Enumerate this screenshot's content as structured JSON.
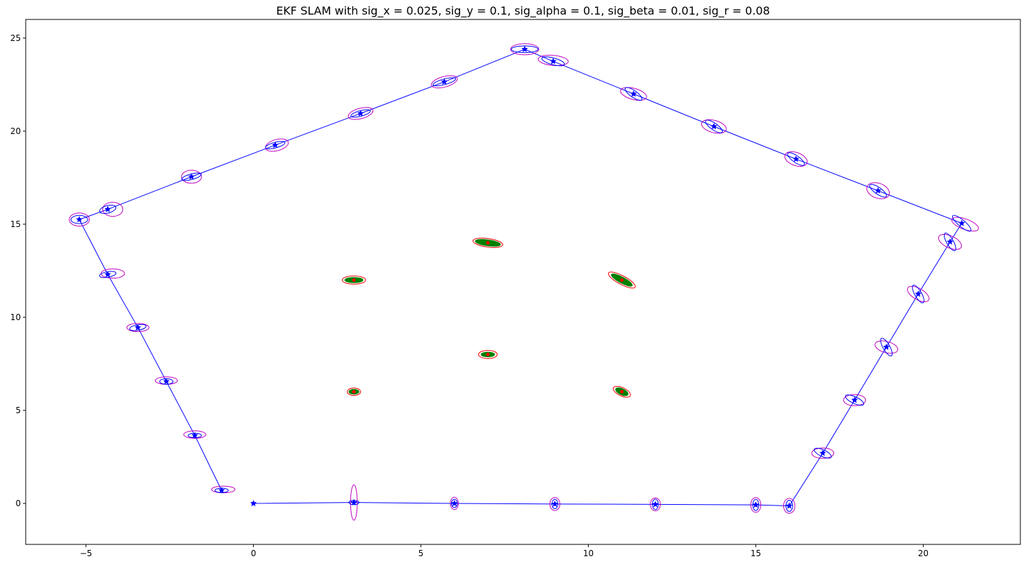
{
  "chart_data": {
    "type": "line",
    "title": "EKF SLAM with sig_x = 0.025, sig_y = 0.1, sig_alpha = 0.1, sig_beta = 0.01, sig_r = 0.08",
    "xlabel": "",
    "ylabel": "",
    "xlim": [
      -6.8,
      22.9
    ],
    "ylim": [
      -2.2,
      26.0
    ],
    "xticks": [
      -5,
      0,
      5,
      10,
      15,
      20
    ],
    "yticks": [
      0,
      5,
      10,
      15,
      20,
      25
    ],
    "grid": false,
    "colors": {
      "trajectory": "#0000ff",
      "pose_inner_ellipse": "#0000ff",
      "pose_outer_ellipse": "#bf00bf",
      "landmark_fill": "#008000",
      "landmark_outer_ellipse": "#ff0000",
      "landmark_marker": "#ff0000"
    },
    "series": [
      {
        "type": "line-marker",
        "marker": "star",
        "points": [
          [
            0.0,
            0.0
          ],
          [
            3.0,
            0.05
          ],
          [
            6.0,
            0.0
          ],
          [
            9.0,
            -0.03
          ],
          [
            12.0,
            -0.05
          ],
          [
            15.0,
            -0.08
          ],
          [
            16.0,
            -0.13
          ],
          [
            17.0,
            2.7
          ],
          [
            17.95,
            5.55
          ],
          [
            18.9,
            8.4
          ],
          [
            19.85,
            11.25
          ],
          [
            20.8,
            14.05
          ],
          [
            21.15,
            15.05
          ],
          [
            18.65,
            16.8
          ],
          [
            16.2,
            18.5
          ],
          [
            13.75,
            20.25
          ],
          [
            11.35,
            22.0
          ],
          [
            8.95,
            23.75
          ],
          [
            8.1,
            24.4
          ],
          [
            5.7,
            22.65
          ],
          [
            3.2,
            20.95
          ],
          [
            0.65,
            19.25
          ],
          [
            -1.85,
            17.55
          ],
          [
            -4.35,
            15.8
          ],
          [
            -5.2,
            15.25
          ],
          [
            -4.35,
            12.3
          ],
          [
            -3.45,
            9.45
          ],
          [
            -2.6,
            6.55
          ],
          [
            -1.75,
            3.65
          ],
          [
            -0.95,
            0.7
          ]
        ],
        "ellipses_inner": [
          [
            0,
            0,
            0,
            0,
            0
          ],
          [
            3.0,
            0.05,
            0.15,
            0.12,
            0
          ],
          [
            6.0,
            0.0,
            0.09,
            0.22,
            0
          ],
          [
            9.0,
            -0.03,
            0.09,
            0.25,
            0
          ],
          [
            12.0,
            -0.05,
            0.09,
            0.28,
            0
          ],
          [
            15.0,
            -0.08,
            0.09,
            0.3,
            0
          ],
          [
            16.0,
            -0.13,
            0.1,
            0.3,
            0
          ],
          [
            17.0,
            2.7,
            0.28,
            0.18,
            -25
          ],
          [
            17.95,
            5.55,
            0.3,
            0.18,
            -25
          ],
          [
            18.9,
            8.4,
            0.3,
            0.18,
            -60
          ],
          [
            19.85,
            11.25,
            0.3,
            0.18,
            -60
          ],
          [
            20.8,
            14.05,
            0.3,
            0.18,
            -60
          ],
          [
            21.15,
            15.05,
            0.35,
            0.18,
            -40
          ],
          [
            18.65,
            16.8,
            0.3,
            0.18,
            -35
          ],
          [
            16.2,
            18.5,
            0.3,
            0.18,
            -35
          ],
          [
            13.75,
            20.25,
            0.3,
            0.18,
            -35
          ],
          [
            11.35,
            22.0,
            0.3,
            0.18,
            -35
          ],
          [
            8.95,
            23.75,
            0.35,
            0.18,
            -15
          ],
          [
            8.1,
            24.4,
            0.4,
            0.18,
            0
          ],
          [
            5.7,
            22.65,
            0.35,
            0.15,
            15
          ],
          [
            3.2,
            20.95,
            0.3,
            0.15,
            15
          ],
          [
            0.65,
            19.25,
            0.3,
            0.15,
            15
          ],
          [
            -1.85,
            17.55,
            0.3,
            0.15,
            15
          ],
          [
            -4.35,
            15.8,
            0.25,
            0.2,
            15
          ],
          [
            -5.2,
            15.25,
            0.25,
            0.22,
            0
          ],
          [
            -4.35,
            12.3,
            0.25,
            0.15,
            10
          ],
          [
            -3.45,
            9.45,
            0.25,
            0.15,
            10
          ],
          [
            -2.6,
            6.55,
            0.2,
            0.15,
            0
          ],
          [
            -1.75,
            3.65,
            0.2,
            0.12,
            0
          ],
          [
            -0.95,
            0.7,
            0.2,
            0.12,
            0
          ]
        ],
        "ellipses_outer": [
          [
            0,
            0,
            0,
            0,
            0
          ],
          [
            3.0,
            0.05,
            0.1,
            0.95,
            0
          ],
          [
            6.0,
            0.0,
            0.12,
            0.33,
            0
          ],
          [
            9.0,
            -0.03,
            0.15,
            0.35,
            0
          ],
          [
            12.0,
            -0.05,
            0.15,
            0.35,
            0
          ],
          [
            15.0,
            -0.08,
            0.15,
            0.4,
            0
          ],
          [
            16.0,
            -0.13,
            0.17,
            0.4,
            0
          ],
          [
            17.0,
            2.7,
            0.33,
            0.28,
            0
          ],
          [
            17.95,
            5.55,
            0.33,
            0.3,
            0
          ],
          [
            18.9,
            8.4,
            0.35,
            0.3,
            -15
          ],
          [
            19.85,
            11.25,
            0.36,
            0.3,
            -30
          ],
          [
            20.8,
            14.05,
            0.37,
            0.32,
            -25
          ],
          [
            21.25,
            15.0,
            0.42,
            0.28,
            -20
          ],
          [
            18.65,
            16.8,
            0.35,
            0.4,
            -20
          ],
          [
            16.2,
            18.5,
            0.35,
            0.35,
            -20
          ],
          [
            13.75,
            20.25,
            0.38,
            0.33,
            -15
          ],
          [
            11.35,
            22.0,
            0.4,
            0.3,
            -15
          ],
          [
            8.95,
            23.8,
            0.45,
            0.27,
            -5
          ],
          [
            8.1,
            24.4,
            0.42,
            0.3,
            0
          ],
          [
            5.7,
            22.65,
            0.4,
            0.28,
            15
          ],
          [
            3.2,
            20.95,
            0.38,
            0.28,
            15
          ],
          [
            0.7,
            19.25,
            0.35,
            0.3,
            15
          ],
          [
            -1.85,
            17.55,
            0.3,
            0.35,
            0
          ],
          [
            -4.2,
            15.8,
            0.3,
            0.38,
            0
          ],
          [
            -5.2,
            15.25,
            0.3,
            0.35,
            0
          ],
          [
            -4.2,
            12.35,
            0.35,
            0.25,
            0
          ],
          [
            -3.45,
            9.45,
            0.33,
            0.22,
            0
          ],
          [
            -2.6,
            6.6,
            0.33,
            0.2,
            0
          ],
          [
            -1.75,
            3.7,
            0.33,
            0.2,
            0
          ],
          [
            -0.9,
            0.75,
            0.35,
            0.18,
            0
          ]
        ]
      }
    ],
    "landmarks": [
      {
        "x": 3,
        "y": 12,
        "rx_green": 0.27,
        "ry_green": 0.14,
        "rx_red": 0.35,
        "ry_red": 0.22,
        "angle": 0
      },
      {
        "x": 7,
        "y": 14,
        "rx_green": 0.38,
        "ry_green": 0.16,
        "rx_red": 0.45,
        "ry_red": 0.23,
        "angle": -8
      },
      {
        "x": 11,
        "y": 12,
        "rx_green": 0.35,
        "ry_green": 0.16,
        "rx_red": 0.45,
        "ry_red": 0.23,
        "angle": -28
      },
      {
        "x": 7,
        "y": 8,
        "rx_green": 0.2,
        "ry_green": 0.13,
        "rx_red": 0.28,
        "ry_red": 0.22,
        "angle": 0
      },
      {
        "x": 3,
        "y": 6,
        "rx_green": 0.15,
        "ry_green": 0.13,
        "rx_red": 0.2,
        "ry_red": 0.2,
        "angle": 0
      },
      {
        "x": 11,
        "y": 6,
        "rx_green": 0.2,
        "ry_green": 0.16,
        "rx_red": 0.28,
        "ry_red": 0.22,
        "angle": -25
      }
    ]
  }
}
